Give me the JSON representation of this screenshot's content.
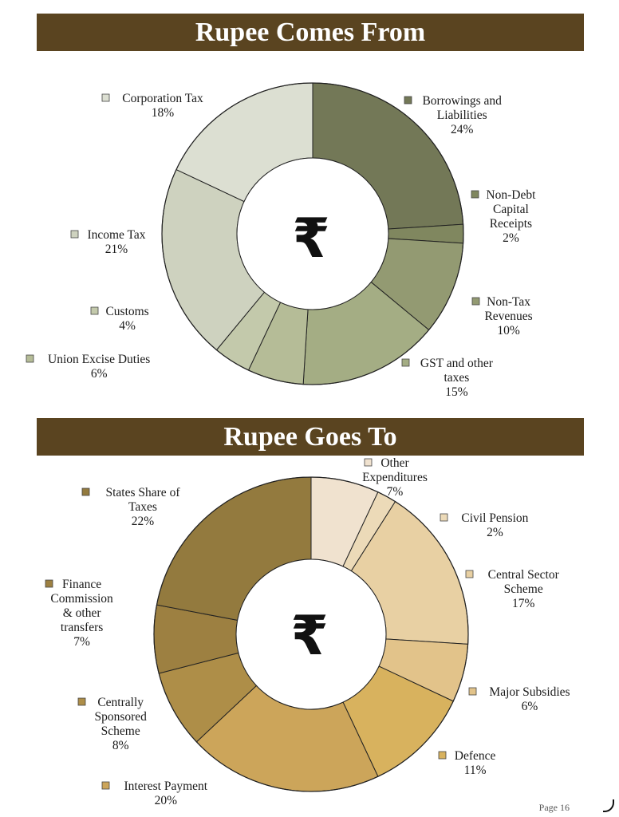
{
  "page": {
    "label": "Page",
    "number": "16"
  },
  "charts_meta": [
    {
      "title": "Rupee Comes From",
      "center_symbol": "₹"
    },
    {
      "title": "Rupee Goes To",
      "center_symbol": "₹"
    }
  ],
  "chart_data": [
    {
      "type": "pie",
      "title": "Rupee Comes From",
      "slices": [
        {
          "label": [
            "Borrowings and",
            "Liabilities"
          ],
          "value": 24,
          "value_label": "24%",
          "color": "#737857"
        },
        {
          "label": [
            "Non-Debt",
            "Capital",
            "Receipts"
          ],
          "value": 2,
          "value_label": "2%",
          "color": "#80875f"
        },
        {
          "label": [
            "Non-Tax",
            "Revenues"
          ],
          "value": 10,
          "value_label": "10%",
          "color": "#939a72"
        },
        {
          "label": [
            "GST and other",
            "taxes"
          ],
          "value": 15,
          "value_label": "15%",
          "color": "#a4ad84"
        },
        {
          "label": [
            "Union Excise Duties"
          ],
          "value": 6,
          "value_label": "6%",
          "color": "#b5bc97"
        },
        {
          "label": [
            "Customs"
          ],
          "value": 4,
          "value_label": "4%",
          "color": "#c3c9ab"
        },
        {
          "label": [
            "Income Tax"
          ],
          "value": 21,
          "value_label": "21%",
          "color": "#ced2bf"
        },
        {
          "label": [
            "Corporation Tax"
          ],
          "value": 18,
          "value_label": "18%",
          "color": "#dcdfd2"
        }
      ]
    },
    {
      "type": "pie",
      "title": "Rupee Goes To",
      "slices": [
        {
          "label": [
            "Other",
            "Expenditures"
          ],
          "value": 7,
          "value_label": "7%",
          "color": "#f0e2cf"
        },
        {
          "label": [
            "Civil Pension"
          ],
          "value": 2,
          "value_label": "2%",
          "color": "#ecdab8"
        },
        {
          "label": [
            "Central Sector",
            "Scheme"
          ],
          "value": 17,
          "value_label": "17%",
          "color": "#e8d0a3"
        },
        {
          "label": [
            "Major Subsidies"
          ],
          "value": 6,
          "value_label": "6%",
          "color": "#e2c38a"
        },
        {
          "label": [
            "Defence"
          ],
          "value": 11,
          "value_label": "11%",
          "color": "#d8b25e"
        },
        {
          "label": [
            "Interest Payment"
          ],
          "value": 20,
          "value_label": "20%",
          "color": "#cca55a"
        },
        {
          "label": [
            "Centrally",
            "Sponsored",
            "Scheme"
          ],
          "value": 8,
          "value_label": "8%",
          "color": "#ae8e48"
        },
        {
          "label": [
            "Finance",
            "Commission",
            "& other",
            "transfers"
          ],
          "value": 7,
          "value_label": "7%",
          "color": "#9d8041"
        },
        {
          "label": [
            "States Share of",
            "Taxes"
          ],
          "value": 22,
          "value_label": "22%",
          "color": "#937a3e"
        }
      ]
    }
  ]
}
